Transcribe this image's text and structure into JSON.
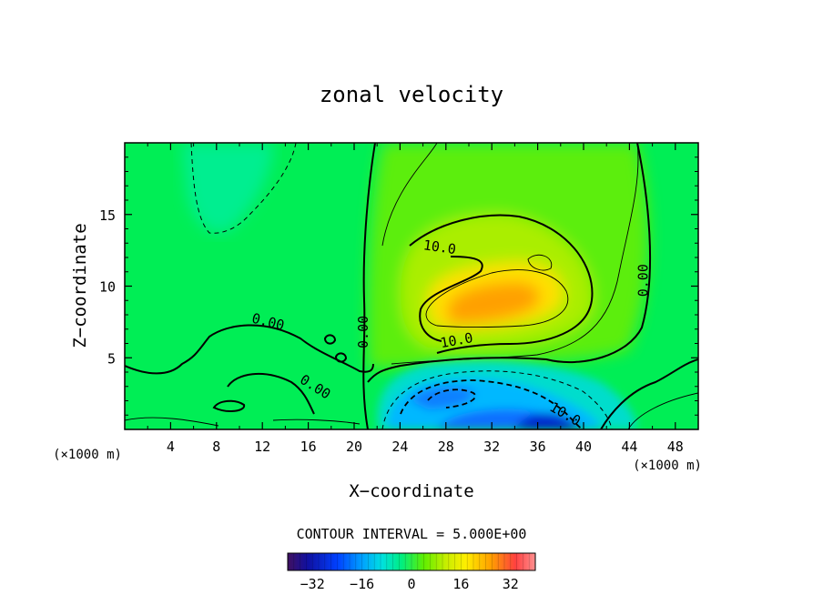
{
  "chart_data": {
    "type": "heatmap",
    "title": "zonal velocity",
    "xlabel": "X−coordinate",
    "ylabel": "Z−coordinate",
    "x_unit": "(×1000 m)",
    "x_unit_right": "(×1000 m)",
    "xlim": [
      0,
      50
    ],
    "ylim": [
      0,
      20
    ],
    "x_ticks": [
      4,
      8,
      12,
      16,
      20,
      24,
      28,
      32,
      36,
      40,
      44,
      48
    ],
    "y_ticks": [
      5,
      10,
      15
    ],
    "contour_interval_label": "CONTOUR INTERVAL = 5.000E+00",
    "colorbar": {
      "min": -40,
      "max": 40,
      "ticks": [
        -32,
        -16,
        0,
        16,
        32
      ]
    },
    "contour_labels": [
      {
        "text": "10.0",
        "x": 27.4,
        "z": 12.4,
        "angle": 8
      },
      {
        "text": "10.0",
        "x": 29.0,
        "z": 5.9,
        "angle": -10
      },
      {
        "text": "0.00",
        "x": 12.4,
        "z": 7.2,
        "angle": 14
      },
      {
        "text": "0.00",
        "x": 16.4,
        "z": 2.7,
        "angle": 32
      },
      {
        "text": "0.00",
        "x": 21.2,
        "z": 6.8,
        "angle": -90
      },
      {
        "text": "0.00",
        "x": 45.6,
        "z": 10.4,
        "angle": -90
      },
      {
        "text": "10.0",
        "x": 38.2,
        "z": 0.8,
        "angle": 30
      }
    ],
    "features": [
      {
        "name": "positive-max",
        "x": 31.0,
        "z": 8.5,
        "value": 24
      },
      {
        "name": "negative-min",
        "x": 36.5,
        "z": 0.5,
        "value": -28
      },
      {
        "name": "negative-core",
        "x": 28.5,
        "z": 2.0,
        "value": -16
      },
      {
        "name": "weak-negative-upper-left",
        "x": 9.5,
        "z": 17.0,
        "value": -6
      }
    ]
  },
  "colors": {
    "background": "#00ee55",
    "frame": "#000000"
  }
}
